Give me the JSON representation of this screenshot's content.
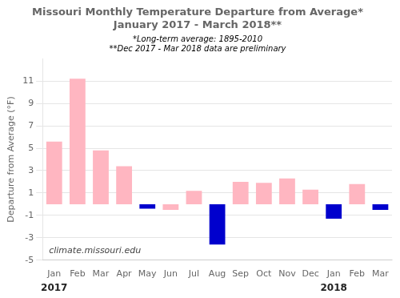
{
  "chart_data": {
    "type": "bar",
    "title": [
      "Missouri Monthly Temperature Departure from Average*",
      "January 2017 - March 2018**"
    ],
    "subtitle": [
      "*Long-term average: 1895-2010",
      "**Dec 2017 - Mar 2018 data are preliminary"
    ],
    "ylabel": "Departure from Average (°F)",
    "categories": [
      "Jan",
      "Feb",
      "Mar",
      "Apr",
      "May",
      "Jun",
      "Jul",
      "Aug",
      "Sep",
      "Oct",
      "Nov",
      "Dec",
      "Jan",
      "Feb",
      "Mar"
    ],
    "values": [
      5.6,
      11.2,
      4.8,
      3.4,
      -0.4,
      -0.5,
      1.2,
      -3.6,
      2.0,
      1.9,
      2.3,
      1.3,
      -1.3,
      1.8,
      -0.5
    ],
    "colors": [
      "#FFB6C1",
      "#FFB6C1",
      "#FFB6C1",
      "#FFB6C1",
      "#0000CD",
      "#FFB6C1",
      "#FFB6C1",
      "#0000CD",
      "#FFB6C1",
      "#FFB6C1",
      "#FFB6C1",
      "#FFB6C1",
      "#0000CD",
      "#FFB6C1",
      "#0000CD"
    ],
    "ylim": [
      -5,
      13
    ],
    "yticks": [
      -5,
      -3,
      -1,
      1,
      3,
      5,
      7,
      9,
      11
    ],
    "grid": true,
    "annotations": [
      {
        "text": "climate.missouri.edu"
      },
      {
        "text": "2017",
        "category_index": 0
      },
      {
        "text": "2018",
        "category_index": 12
      }
    ]
  }
}
